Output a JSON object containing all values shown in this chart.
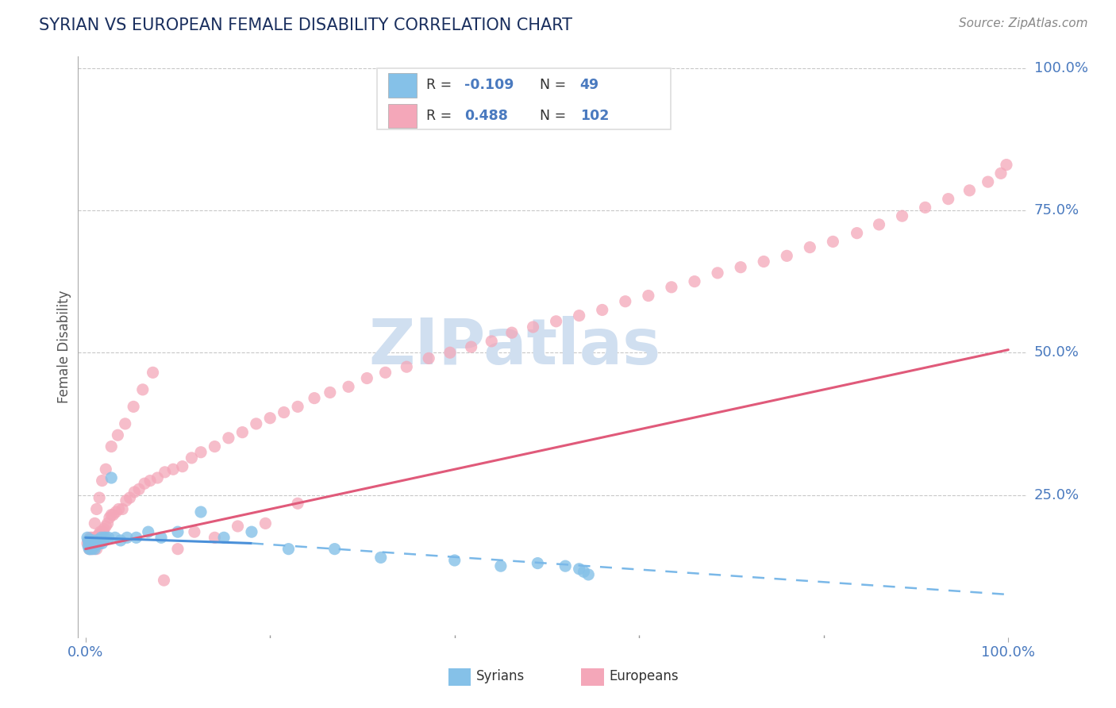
{
  "title": "SYRIAN VS EUROPEAN FEMALE DISABILITY CORRELATION CHART",
  "source": "Source: ZipAtlas.com",
  "ylabel": "Female Disability",
  "color_syrian": "#85c1e8",
  "color_european": "#f4a7b9",
  "line_color_syrian_solid": "#4a90d9",
  "line_color_syrian_dashed": "#7ab8e8",
  "line_color_european": "#e05a7a",
  "title_color": "#1a2f5e",
  "axis_label_color": "#4a7abf",
  "watermark_color": "#d0dff0",
  "background_color": "#ffffff",
  "grid_color": "#c8c8c8",
  "legend_box_color": "#dddddd",
  "source_color": "#888888",
  "syrians_x": [
    0.002,
    0.003,
    0.003,
    0.004,
    0.004,
    0.005,
    0.005,
    0.006,
    0.006,
    0.007,
    0.007,
    0.008,
    0.008,
    0.009,
    0.01,
    0.01,
    0.011,
    0.012,
    0.013,
    0.014,
    0.015,
    0.016,
    0.017,
    0.018,
    0.019,
    0.02,
    0.022,
    0.025,
    0.028,
    0.032,
    0.038,
    0.045,
    0.055,
    0.068,
    0.082,
    0.1,
    0.125,
    0.15,
    0.18,
    0.22,
    0.27,
    0.32,
    0.4,
    0.45,
    0.49,
    0.52,
    0.535,
    0.54,
    0.545
  ],
  "syrians_y": [
    0.175,
    0.16,
    0.17,
    0.155,
    0.165,
    0.16,
    0.155,
    0.17,
    0.16,
    0.165,
    0.155,
    0.16,
    0.17,
    0.165,
    0.16,
    0.155,
    0.165,
    0.17,
    0.165,
    0.17,
    0.165,
    0.17,
    0.175,
    0.165,
    0.17,
    0.175,
    0.175,
    0.175,
    0.28,
    0.175,
    0.17,
    0.175,
    0.175,
    0.185,
    0.175,
    0.185,
    0.22,
    0.175,
    0.185,
    0.155,
    0.155,
    0.14,
    0.135,
    0.125,
    0.13,
    0.125,
    0.12,
    0.115,
    0.11
  ],
  "europeans_x": [
    0.002,
    0.003,
    0.004,
    0.005,
    0.005,
    0.006,
    0.007,
    0.007,
    0.008,
    0.009,
    0.01,
    0.011,
    0.012,
    0.013,
    0.014,
    0.015,
    0.016,
    0.017,
    0.018,
    0.019,
    0.02,
    0.022,
    0.024,
    0.026,
    0.028,
    0.03,
    0.033,
    0.036,
    0.04,
    0.044,
    0.048,
    0.053,
    0.058,
    0.064,
    0.07,
    0.078,
    0.086,
    0.095,
    0.105,
    0.115,
    0.125,
    0.14,
    0.155,
    0.17,
    0.185,
    0.2,
    0.215,
    0.23,
    0.248,
    0.265,
    0.285,
    0.305,
    0.325,
    0.348,
    0.372,
    0.395,
    0.418,
    0.44,
    0.462,
    0.485,
    0.51,
    0.535,
    0.56,
    0.585,
    0.61,
    0.635,
    0.66,
    0.685,
    0.71,
    0.735,
    0.76,
    0.785,
    0.81,
    0.836,
    0.86,
    0.885,
    0.91,
    0.935,
    0.958,
    0.978,
    0.992,
    0.998,
    0.006,
    0.008,
    0.01,
    0.012,
    0.015,
    0.018,
    0.022,
    0.028,
    0.035,
    0.043,
    0.052,
    0.062,
    0.073,
    0.085,
    0.1,
    0.118,
    0.14,
    0.165,
    0.195,
    0.23
  ],
  "europeans_y": [
    0.165,
    0.17,
    0.155,
    0.165,
    0.175,
    0.16,
    0.17,
    0.175,
    0.155,
    0.165,
    0.175,
    0.17,
    0.155,
    0.175,
    0.18,
    0.18,
    0.185,
    0.175,
    0.185,
    0.185,
    0.19,
    0.195,
    0.2,
    0.21,
    0.215,
    0.215,
    0.22,
    0.225,
    0.225,
    0.24,
    0.245,
    0.255,
    0.26,
    0.27,
    0.275,
    0.28,
    0.29,
    0.295,
    0.3,
    0.315,
    0.325,
    0.335,
    0.35,
    0.36,
    0.375,
    0.385,
    0.395,
    0.405,
    0.42,
    0.43,
    0.44,
    0.455,
    0.465,
    0.475,
    0.49,
    0.5,
    0.51,
    0.52,
    0.535,
    0.545,
    0.555,
    0.565,
    0.575,
    0.59,
    0.6,
    0.615,
    0.625,
    0.64,
    0.65,
    0.66,
    0.67,
    0.685,
    0.695,
    0.71,
    0.725,
    0.74,
    0.755,
    0.77,
    0.785,
    0.8,
    0.815,
    0.83,
    0.155,
    0.165,
    0.2,
    0.225,
    0.245,
    0.275,
    0.295,
    0.335,
    0.355,
    0.375,
    0.405,
    0.435,
    0.465,
    0.1,
    0.155,
    0.185,
    0.175,
    0.195,
    0.2,
    0.235
  ],
  "syr_line_x0": 0.0,
  "syr_line_x1": 0.18,
  "syr_line_x2": 1.0,
  "syr_line_y0": 0.175,
  "syr_line_y1": 0.165,
  "syr_line_y2": 0.075,
  "eur_line_x0": 0.0,
  "eur_line_x1": 1.0,
  "eur_line_y0": 0.155,
  "eur_line_y1": 0.505,
  "ylim_min": 0.0,
  "ylim_max": 1.02,
  "xlim_min": -0.008,
  "xlim_max": 1.02
}
